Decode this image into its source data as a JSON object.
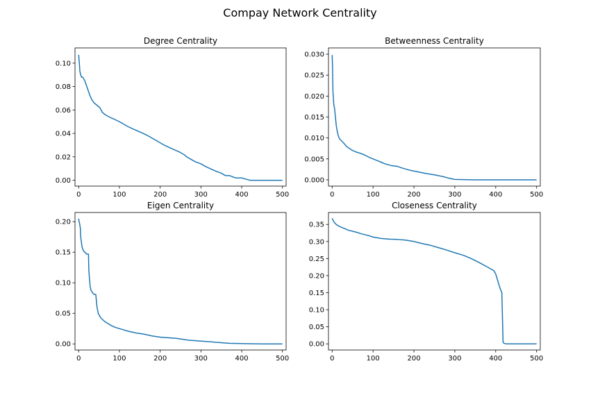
{
  "figure": {
    "title": "Compay Network Centrality",
    "line_color": "#1f77b4"
  },
  "chart_data": [
    {
      "type": "line",
      "title": "Degree Centrality",
      "xlabel": "",
      "ylabel": "",
      "grid": false,
      "xlim": [
        -9,
        509
      ],
      "ylim": [
        -0.005,
        0.113
      ],
      "xticks": [
        0,
        100,
        200,
        300,
        400,
        500
      ],
      "yticks": [
        0.0,
        0.02,
        0.04,
        0.06,
        0.08,
        0.1
      ],
      "ytick_labels": [
        "0.00",
        "0.02",
        "0.04",
        "0.06",
        "0.08",
        "0.10"
      ],
      "series": [
        {
          "x": [
            0,
            2,
            3,
            5,
            7,
            10,
            15,
            18,
            22,
            25,
            28,
            32,
            38,
            45,
            52,
            58,
            65,
            75,
            88,
            100,
            110,
            120,
            132,
            145,
            158,
            170,
            180,
            190,
            200,
            210,
            222,
            235,
            248,
            258,
            265,
            275,
            285,
            300,
            310,
            322,
            335,
            350,
            360,
            370,
            385,
            400,
            420,
            440,
            460,
            480,
            500
          ],
          "y": [
            0.107,
            0.098,
            0.093,
            0.09,
            0.088,
            0.088,
            0.085,
            0.082,
            0.078,
            0.075,
            0.072,
            0.069,
            0.066,
            0.064,
            0.062,
            0.058,
            0.056,
            0.054,
            0.052,
            0.05,
            0.048,
            0.046,
            0.044,
            0.042,
            0.04,
            0.038,
            0.036,
            0.034,
            0.032,
            0.03,
            0.028,
            0.026,
            0.024,
            0.022,
            0.02,
            0.018,
            0.016,
            0.014,
            0.012,
            0.01,
            0.008,
            0.006,
            0.004,
            0.004,
            0.002,
            0.002,
            0.0,
            0.0,
            0.0,
            0.0,
            0.0
          ]
        }
      ]
    },
    {
      "type": "line",
      "title": "Betweenness Centrality",
      "xlabel": "",
      "ylabel": "",
      "grid": false,
      "xlim": [
        -9,
        509
      ],
      "ylim": [
        -0.0015,
        0.0315
      ],
      "xticks": [
        0,
        100,
        200,
        300,
        400,
        500
      ],
      "yticks": [
        0.0,
        0.005,
        0.01,
        0.015,
        0.02,
        0.025,
        0.03
      ],
      "ytick_labels": [
        "0.000",
        "0.005",
        "0.010",
        "0.015",
        "0.020",
        "0.025",
        "0.030"
      ],
      "series": [
        {
          "x": [
            0,
            1,
            2,
            3,
            4,
            6,
            8,
            10,
            12,
            15,
            18,
            22,
            28,
            35,
            42,
            50,
            60,
            70,
            80,
            90,
            100,
            110,
            120,
            130,
            145,
            160,
            175,
            190,
            210,
            230,
            250,
            270,
            285,
            300,
            320,
            350,
            400,
            450,
            500
          ],
          "y": [
            0.0298,
            0.027,
            0.021,
            0.0195,
            0.018,
            0.017,
            0.015,
            0.013,
            0.0118,
            0.0105,
            0.0098,
            0.0094,
            0.0088,
            0.008,
            0.0075,
            0.007,
            0.0066,
            0.0063,
            0.0059,
            0.0054,
            0.005,
            0.0046,
            0.0042,
            0.0038,
            0.0034,
            0.0032,
            0.0027,
            0.0023,
            0.0019,
            0.0015,
            0.0012,
            0.0008,
            0.0004,
            0.0001,
            5e-05,
            0.0,
            0.0,
            0.0,
            0.0
          ]
        }
      ]
    },
    {
      "type": "line",
      "title": "Eigen Centrality",
      "xlabel": "",
      "ylabel": "",
      "grid": false,
      "xlim": [
        -9,
        509
      ],
      "ylim": [
        -0.01,
        0.215
      ],
      "xticks": [
        0,
        100,
        200,
        300,
        400,
        500
      ],
      "yticks": [
        0.0,
        0.05,
        0.1,
        0.15,
        0.2
      ],
      "ytick_labels": [
        "0.00",
        "0.05",
        "0.10",
        "0.15",
        "0.20"
      ],
      "series": [
        {
          "x": [
            0,
            1,
            2,
            4,
            5,
            6,
            8,
            10,
            12,
            15,
            18,
            20,
            22,
            24,
            25,
            28,
            30,
            33,
            36,
            38,
            42,
            45,
            48,
            52,
            55,
            60,
            65,
            70,
            80,
            90,
            100,
            110,
            120,
            140,
            160,
            180,
            200,
            220,
            240,
            250,
            270,
            290,
            310,
            330,
            350,
            370,
            400,
            450,
            500
          ],
          "y": [
            0.205,
            0.2,
            0.198,
            0.19,
            0.175,
            0.17,
            0.16,
            0.155,
            0.152,
            0.15,
            0.148,
            0.147,
            0.147,
            0.147,
            0.12,
            0.095,
            0.088,
            0.085,
            0.082,
            0.081,
            0.081,
            0.06,
            0.05,
            0.045,
            0.042,
            0.039,
            0.036,
            0.034,
            0.03,
            0.027,
            0.025,
            0.023,
            0.021,
            0.018,
            0.016,
            0.013,
            0.011,
            0.01,
            0.009,
            0.008,
            0.006,
            0.005,
            0.004,
            0.003,
            0.002,
            0.001,
            0.0005,
            0.0,
            0.0
          ]
        }
      ]
    },
    {
      "type": "line",
      "title": "Closeness Centrality",
      "xlabel": "",
      "ylabel": "",
      "grid": false,
      "xlim": [
        -9,
        509
      ],
      "ylim": [
        -0.018,
        0.385
      ],
      "xticks": [
        0,
        100,
        200,
        300,
        400,
        500
      ],
      "yticks": [
        0.0,
        0.05,
        0.1,
        0.15,
        0.2,
        0.25,
        0.3,
        0.35
      ],
      "ytick_labels": [
        "0.00",
        "0.05",
        "0.10",
        "0.15",
        "0.20",
        "0.25",
        "0.30",
        "0.35"
      ],
      "series": [
        {
          "x": [
            0,
            3,
            6,
            10,
            15,
            20,
            30,
            40,
            50,
            60,
            70,
            80,
            90,
            100,
            120,
            140,
            160,
            180,
            200,
            220,
            240,
            260,
            280,
            300,
            320,
            340,
            360,
            380,
            395,
            400,
            405,
            410,
            415,
            418,
            420,
            425,
            430,
            450,
            500
          ],
          "y": [
            0.368,
            0.36,
            0.355,
            0.35,
            0.346,
            0.343,
            0.338,
            0.333,
            0.33,
            0.327,
            0.323,
            0.32,
            0.317,
            0.313,
            0.309,
            0.307,
            0.306,
            0.304,
            0.3,
            0.294,
            0.289,
            0.282,
            0.275,
            0.267,
            0.26,
            0.25,
            0.238,
            0.225,
            0.215,
            0.205,
            0.185,
            0.165,
            0.15,
            0.005,
            0.002,
            0.0,
            0.0,
            0.0,
            0.0
          ]
        }
      ]
    }
  ]
}
